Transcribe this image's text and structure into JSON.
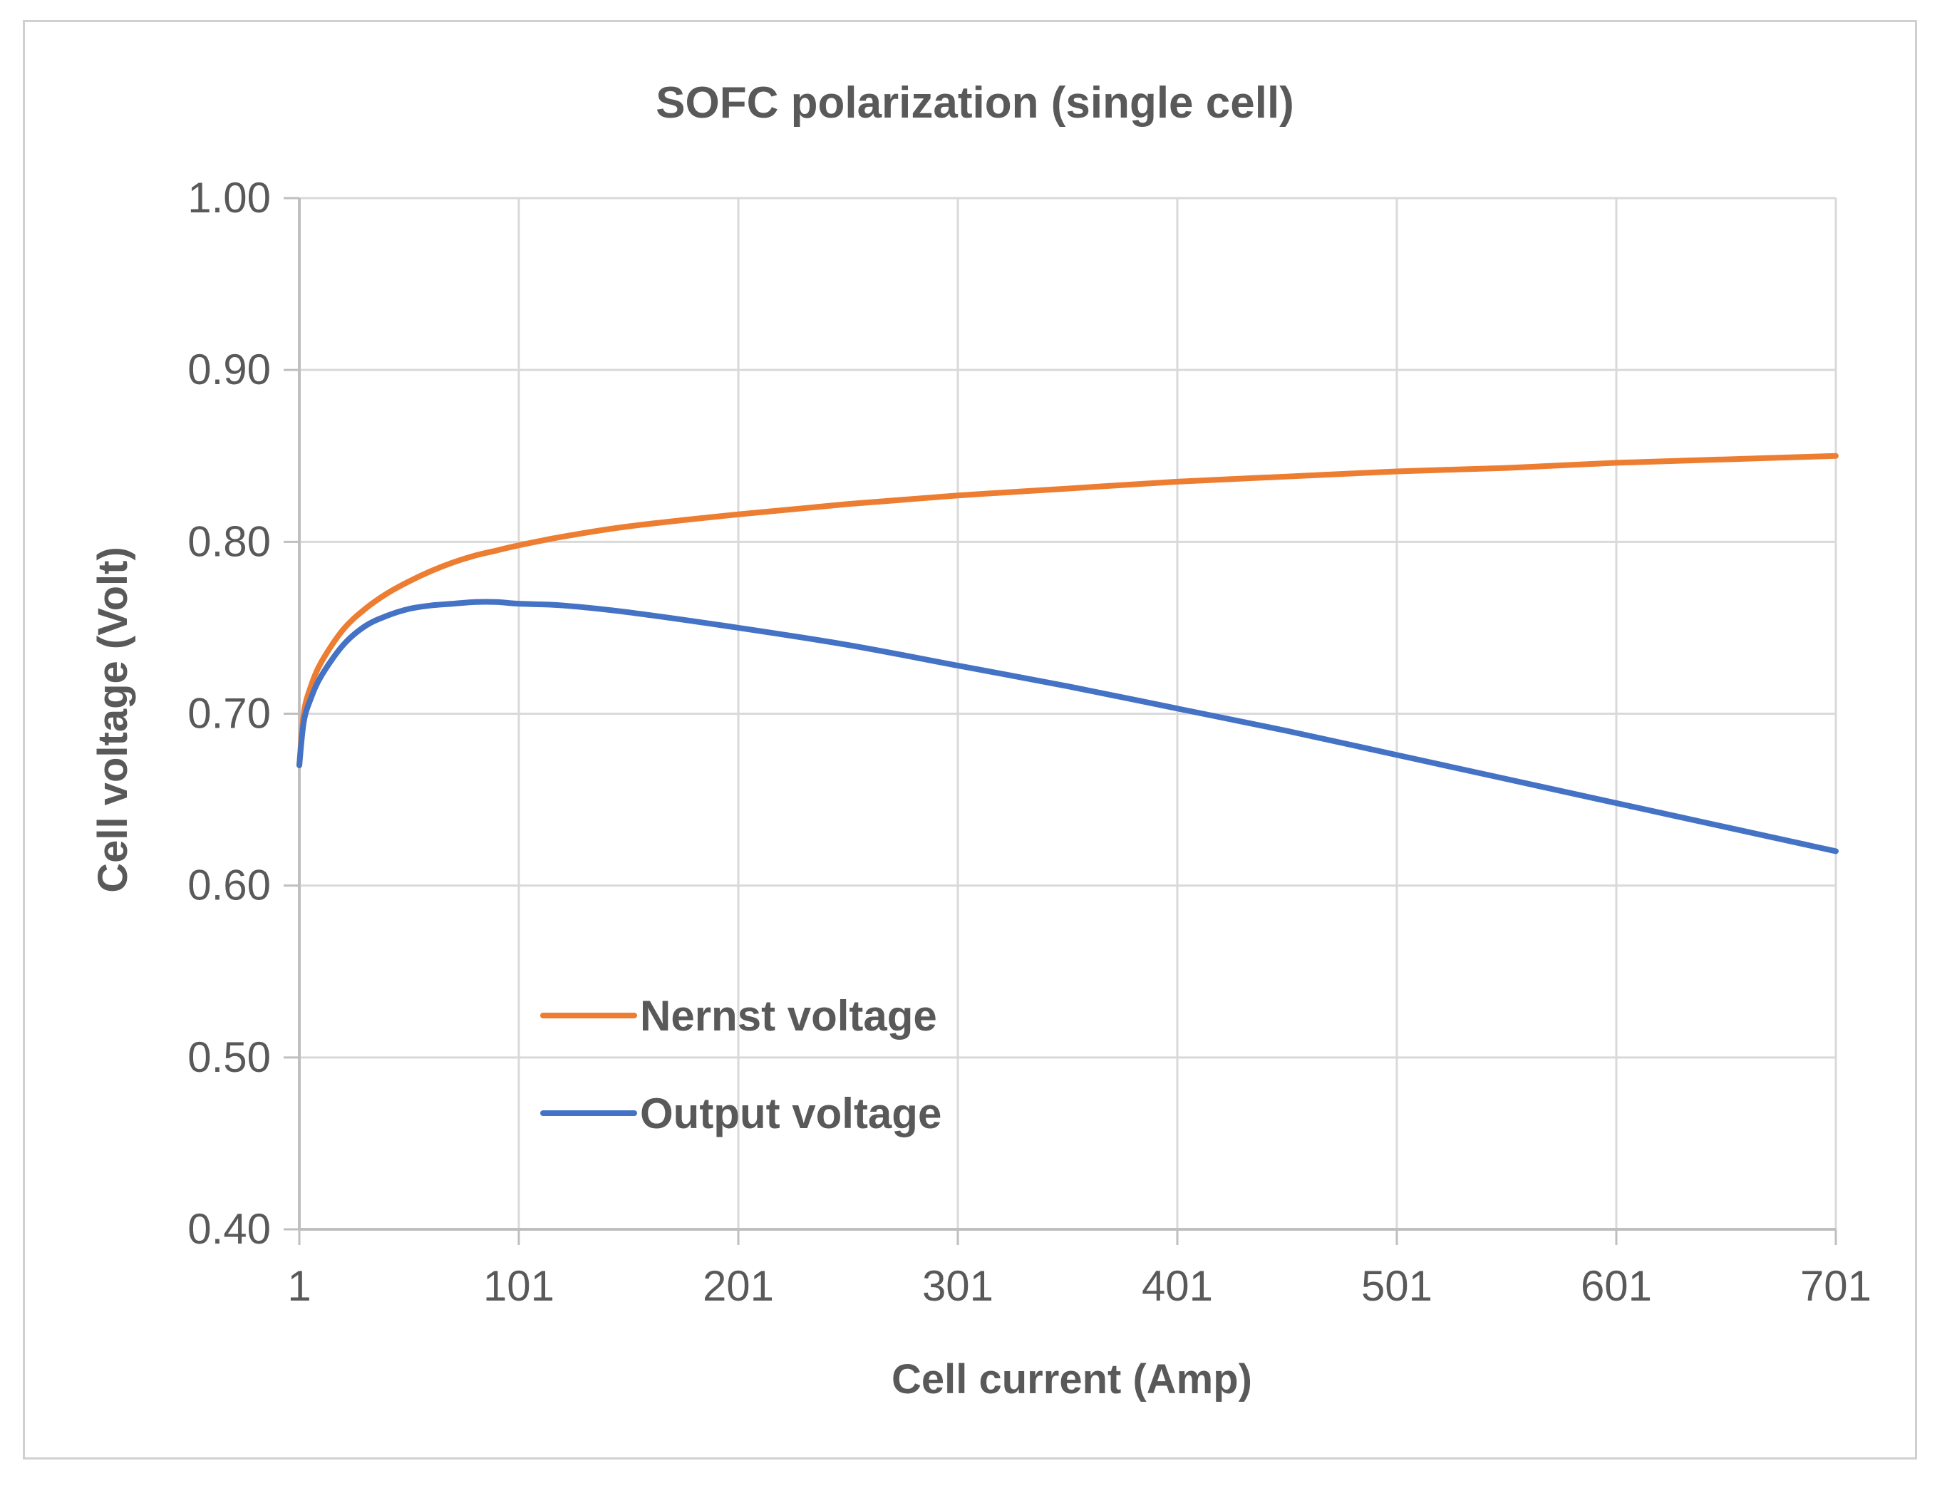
{
  "chart_data": {
    "type": "line",
    "title": "SOFC polarization (single cell)",
    "xlabel": "Cell current (Amp)",
    "ylabel": "Cell voltage (Volt)",
    "xlim": [
      1,
      701
    ],
    "ylim": [
      0.4,
      1.0
    ],
    "x_ticks": [
      "1",
      "101",
      "201",
      "301",
      "401",
      "501",
      "601",
      "701"
    ],
    "y_ticks": [
      "0.40",
      "0.50",
      "0.60",
      "0.70",
      "0.80",
      "0.90",
      "1.00"
    ],
    "grid": true,
    "legend_position": "lower-left-inside",
    "x": [
      1,
      3,
      6,
      11,
      21,
      31,
      41,
      51,
      61,
      71,
      81,
      91,
      101,
      121,
      151,
      201,
      251,
      301,
      351,
      401,
      451,
      501,
      551,
      601,
      651,
      701
    ],
    "series": [
      {
        "name": "Nernst voltage",
        "color": "#ED7D31",
        "values": [
          0.67,
          0.7,
          0.715,
          0.73,
          0.749,
          0.761,
          0.77,
          0.777,
          0.783,
          0.788,
          0.792,
          0.795,
          0.798,
          0.803,
          0.809,
          0.816,
          0.822,
          0.827,
          0.831,
          0.835,
          0.838,
          0.841,
          0.843,
          0.846,
          0.848,
          0.85
        ]
      },
      {
        "name": "Output voltage",
        "color": "#4472C4",
        "values": [
          0.67,
          0.695,
          0.708,
          0.722,
          0.74,
          0.751,
          0.757,
          0.761,
          0.763,
          0.764,
          0.765,
          0.765,
          0.764,
          0.763,
          0.759,
          0.75,
          0.74,
          0.728,
          0.716,
          0.703,
          0.69,
          0.676,
          0.662,
          0.648,
          0.634,
          0.62
        ]
      }
    ]
  }
}
